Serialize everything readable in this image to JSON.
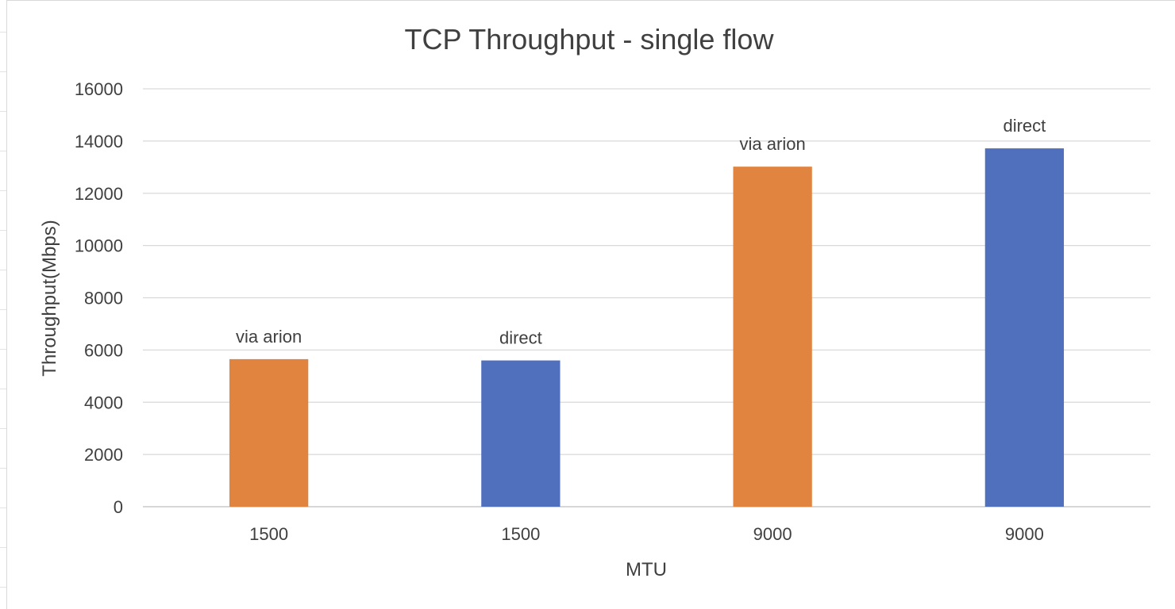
{
  "chart_data": {
    "type": "bar",
    "title": "TCP Throughput - single flow",
    "xlabel": "MTU",
    "ylabel": "Throughput(Mbps)",
    "ylim": [
      0,
      16000
    ],
    "yticks": [
      "0",
      "2000",
      "4000",
      "6000",
      "8000",
      "10000",
      "12000",
      "14000",
      "16000"
    ],
    "grid": true,
    "legend": "none",
    "bars": [
      {
        "category": "1500",
        "label": "via arion",
        "value": 5650,
        "color": "#E0843F"
      },
      {
        "category": "1500",
        "label": "direct",
        "value": 5600,
        "color": "#5070BE"
      },
      {
        "category": "9000",
        "label": "via arion",
        "value": 13020,
        "color": "#E0843F"
      },
      {
        "category": "9000",
        "label": "direct",
        "value": 13720,
        "color": "#5070BE"
      }
    ]
  },
  "colors": {
    "via_arion": "#E0843F",
    "direct": "#5070BE",
    "grid": "#d9d9d9",
    "text": "#404040"
  }
}
